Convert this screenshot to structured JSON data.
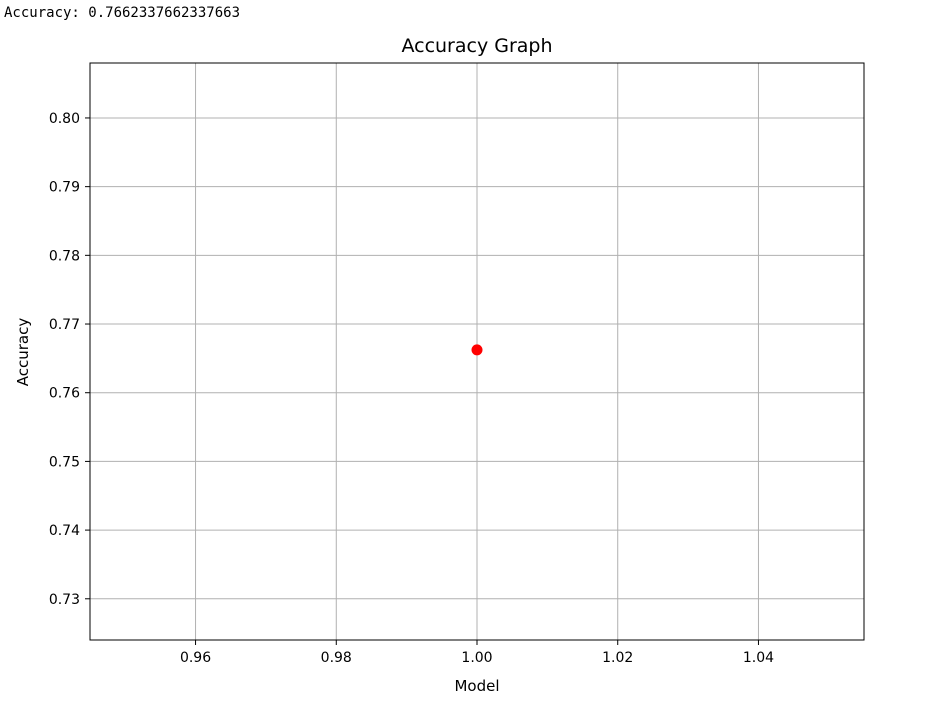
{
  "output": {
    "text": "Accuracy: 0.7662337662337663"
  },
  "chart_data": {
    "type": "scatter",
    "title": "Accuracy Graph",
    "xlabel": "Model",
    "ylabel": "Accuracy",
    "xlim": [
      0.945,
      1.055
    ],
    "ylim": [
      0.724,
      0.808
    ],
    "xticks": [
      0.96,
      0.98,
      1.0,
      1.02,
      1.04
    ],
    "xtick_labels": [
      "0.96",
      "0.98",
      "1.00",
      "1.02",
      "1.04"
    ],
    "yticks": [
      0.73,
      0.74,
      0.75,
      0.76,
      0.77,
      0.78,
      0.79,
      0.8
    ],
    "ytick_labels": [
      "0.73",
      "0.74",
      "0.75",
      "0.76",
      "0.77",
      "0.78",
      "0.79",
      "0.80"
    ],
    "grid": true,
    "series": [
      {
        "color": "#ff0000",
        "points": [
          {
            "x": 1.0,
            "y": 0.7662337662337663
          }
        ]
      }
    ]
  }
}
